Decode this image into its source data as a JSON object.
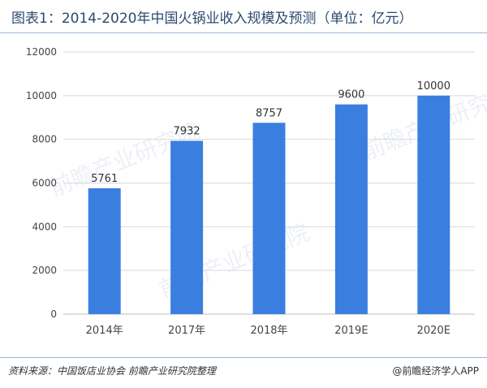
{
  "header": {
    "title": "图表1：2014-2020年中国火锅业收入规模及预测（单位：亿元）"
  },
  "footer": {
    "source": "资料来源：中国饭店业协会  前瞻产业研究院整理",
    "brand": "@前瞻经济学人APP"
  },
  "watermark": {
    "text": "前瞻产业研究院"
  },
  "colors": {
    "bar": "#3a7fe0",
    "axis_text": "#444444",
    "grid": "#d9d9d9"
  },
  "chart_data": {
    "type": "bar",
    "categories": [
      "2014年",
      "2017年",
      "2018年",
      "2019E",
      "2020E"
    ],
    "values": [
      5761,
      7932,
      8757,
      9600,
      10000
    ],
    "ylim": [
      0,
      12000
    ],
    "yticks": [
      0,
      2000,
      4000,
      6000,
      8000,
      10000,
      12000
    ],
    "grid": true,
    "title": "",
    "xlabel": "",
    "ylabel": ""
  }
}
